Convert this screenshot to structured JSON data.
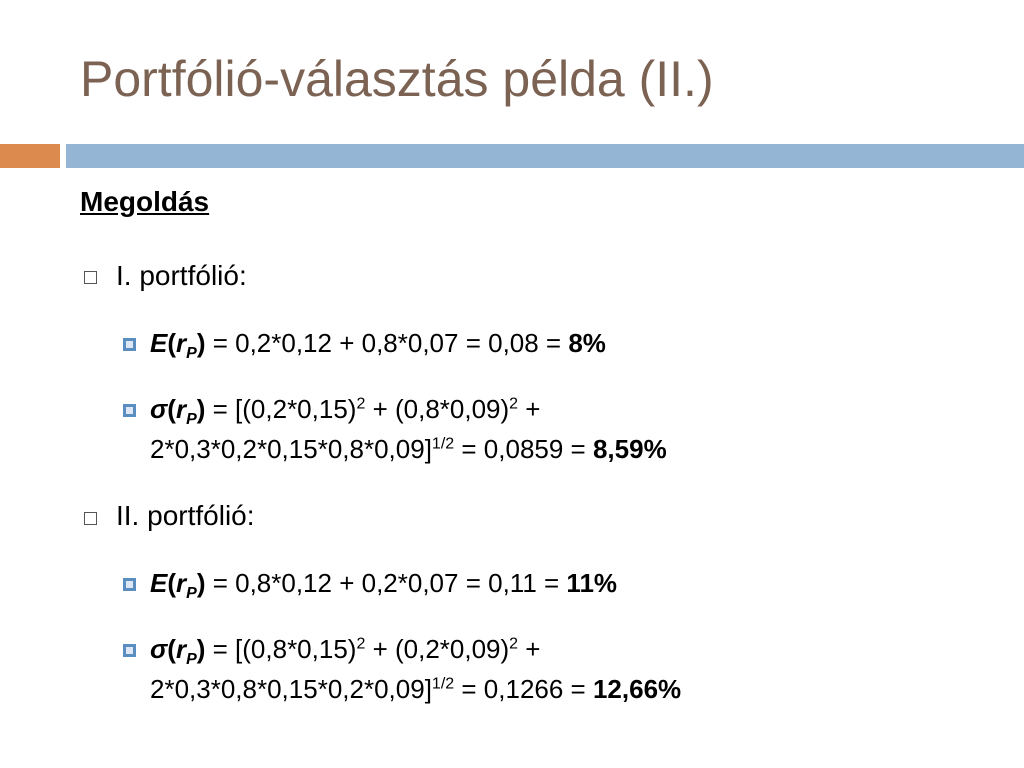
{
  "title": "Portfólió-választás példa (II.)",
  "heading": "Megoldás",
  "sections": [
    {
      "label": "I. portfólió:",
      "items": [
        {
          "runs": [
            "E",
            "(",
            "r",
            "P",
            ")",
            " = 0,2*0,12 + 0,8*0,07 = 0,08 = ",
            "8%"
          ]
        },
        {
          "runs": [
            "σ",
            "(",
            "r",
            "P",
            ")",
            " = [(0,2*0,15)",
            "2",
            " + (0,8*0,09)",
            "2",
            " +",
            "2*0,3*0,2*0,15*0,8*0,09]",
            "1/2",
            " = 0,0859 = ",
            "8,59%"
          ]
        }
      ]
    },
    {
      "label": "II. portfólió:",
      "items": [
        {
          "runs": [
            "E",
            "(",
            "r",
            "P",
            ")",
            " = 0,8*0,12 + 0,2*0,07 = 0,11 = ",
            "11%"
          ]
        },
        {
          "runs": [
            "σ",
            "(",
            "r",
            "P",
            ")",
            " = [(0,8*0,15)",
            "2",
            " + (0,2*0,09)",
            "2",
            " +",
            "2*0,3*0,8*0,15*0,2*0,09]",
            "1/2",
            " = 0,1266 = ",
            "12,66%"
          ]
        }
      ]
    }
  ]
}
